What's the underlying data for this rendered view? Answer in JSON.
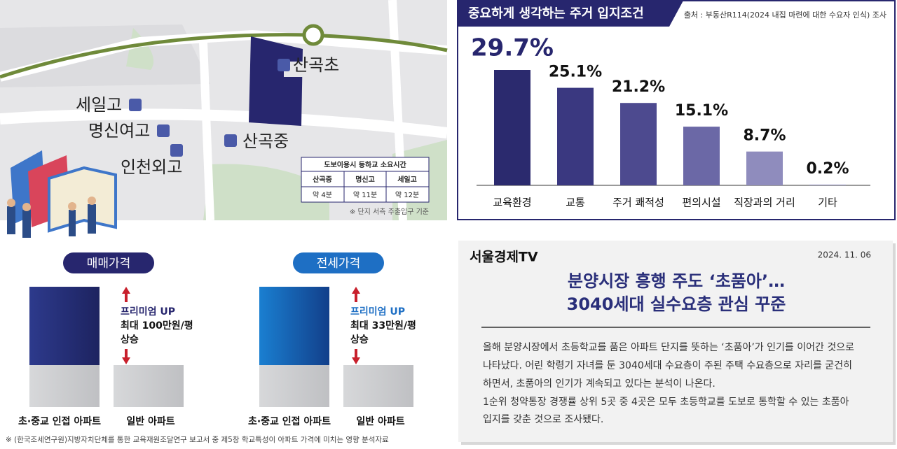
{
  "map": {
    "labels": [
      "산곡초",
      "세일고",
      "명신여고",
      "인천외고",
      "산곡중"
    ],
    "table": {
      "title": "도보이용시 등하교 소요시간",
      "header": [
        "산곡중",
        "명신고",
        "세일고"
      ],
      "row": [
        "약 4분",
        "약 11분",
        "약 12분"
      ],
      "note": "※ 단지 서측 주출입구 기준"
    }
  },
  "chart_data": {
    "type": "bar",
    "title": "중요하게 생각하는 주거 입지조건",
    "source": "출처 : 부동산R114(2024 내집 마련에 대한 수요자 인식) 조사",
    "categories": [
      "교육환경",
      "교통",
      "주거 쾌적성",
      "편의시설",
      "직장과의 거리",
      "기타"
    ],
    "values": [
      29.7,
      25.1,
      21.2,
      15.1,
      8.7,
      0.2
    ],
    "value_labels": [
      "29.7%",
      "25.1%",
      "21.2%",
      "15.1%",
      "8.7%",
      "0.2%"
    ],
    "colors": [
      "#2b2a6e",
      "#3a3880",
      "#4d4a8f",
      "#6b68a6",
      "#8f8cbd",
      "#9e9cc6"
    ]
  },
  "price": {
    "panels": [
      {
        "title": "매매가격",
        "note_title": "프리미엄 UP",
        "note_lines": [
          "최대 100만원/평",
          "상승"
        ],
        "labels": [
          "초·중교 인접 아파트",
          "일반 아파트"
        ]
      },
      {
        "title": "전세가격",
        "note_title": "프리미엄 UP",
        "note_lines": [
          "최대 33만원/평",
          "상승"
        ],
        "labels": [
          "초·중교 인접 아파트",
          "일반 아파트"
        ]
      }
    ],
    "footnote": "※ (한국조세연구원)지방자치단체를 통한 교육재원조달연구 보고서 중 제5창 학교특성이 아파트 가격에 미치는 영향 분석자료"
  },
  "article": {
    "brand": "서울경제TV",
    "date": "2024. 11. 06",
    "headline": [
      "분양시장 흥행 주도 ‘초품아’…",
      "3040세대 실수요층 관심 꾸준"
    ],
    "body": [
      "올해 분양시장에서 초등학교를 품은 아파트 단지를 뜻하는 ‘초품아’가 인기를 이어간 것으로",
      "나타났다. 어린 학령기 자녀를 둔 3040세대 수요층이 주된 주택 수요층으로 자리를 굳건히",
      "하면서, 초품아의 인기가 계속되고 있다는 분석이 나온다.",
      "1순위 청약통장 경쟁률 상위 5곳 중 4곳은 모두 초등학교를 도보로 통학할 수 있는 초품아",
      "입지를 갖춘 것으로 조사됐다."
    ]
  }
}
